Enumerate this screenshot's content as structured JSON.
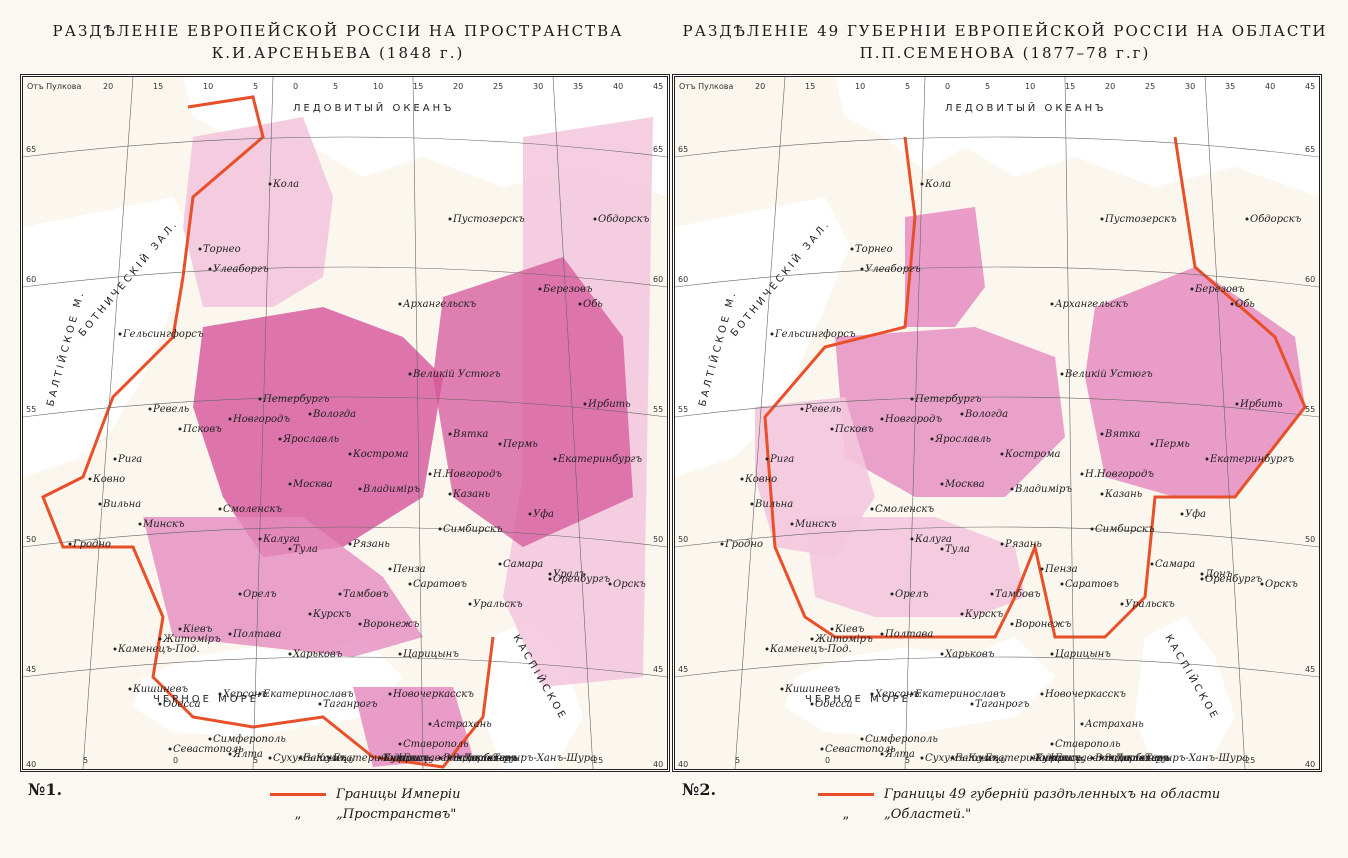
{
  "maps": [
    {
      "title_line1": "РАЗДѢЛЕНІЕ ЕВРОПЕЙСКОЙ РОССІИ НА ПРОСТРАНСТВА",
      "title_line2": "К.И.АРСЕНЬЕВА (1848 г.)",
      "number": "№1.",
      "prime_meridian": "Отъ Пулкова",
      "sea_labels": {
        "arctic": "ЛЕДОВИТЫЙ ОКЕАНЪ",
        "black": "ЧЕРНОЕ МОРЕ",
        "caspian": "КАСПІЙСКОЕ",
        "baltic": "БАЛТІЙСКОЕ М.",
        "bothnia": "БОТНИЧЕСКІЙ ЗАЛ."
      },
      "lon_ticks": [
        "20",
        "15",
        "10",
        "5",
        "0",
        "5",
        "10",
        "15",
        "20",
        "25",
        "30",
        "35",
        "40",
        "45"
      ],
      "lon_ticks_bottom": [
        "5",
        "0",
        "5",
        "10",
        "15",
        "20",
        "25"
      ],
      "lat_ticks": [
        "65",
        "60",
        "55",
        "50",
        "45",
        "40"
      ],
      "cities": [
        "Кола",
        "Торнео",
        "Улеаборгъ",
        "Архангельскъ",
        "Пустозерскъ",
        "Обдорскъ",
        "Березовъ",
        "Обь",
        "Гельсингфорсъ",
        "Петербургъ",
        "Ревель",
        "Рига",
        "Псковъ",
        "Новгородъ",
        "Вологда",
        "Великій Устюгъ",
        "Ярославль",
        "Кострома",
        "Вятка",
        "Пермь",
        "Екатеринбургъ",
        "Ирбить",
        "Москва",
        "Владиміръ",
        "Н.Новгородъ",
        "Казань",
        "Уфа",
        "Смоленскъ",
        "Калуга",
        "Тула",
        "Рязань",
        "Симбирскъ",
        "Самара",
        "Оренбургъ",
        "Орскъ",
        "Уральскъ",
        "Саратовъ",
        "Пенза",
        "Тамбовъ",
        "Орелъ",
        "Курскъ",
        "Воронежъ",
        "Харьковъ",
        "Полтава",
        "Кіевъ",
        "Житоміръ",
        "Каменецъ-Под.",
        "Вильна",
        "Гродно",
        "Минскъ",
        "Ковно",
        "Екатеринославъ",
        "Херсонъ",
        "Одесса",
        "Кишиневъ",
        "Симферополь",
        "Севастополь",
        "Ялта",
        "Таганрогъ",
        "Новочеркасскъ",
        "Царицынъ",
        "Астрахань",
        "Ставрополь",
        "Екатеринодаръ",
        "Владикавказъ",
        "Тифлисъ",
        "Сухумъ-Кале",
        "Батумъ",
        "Кутаисъ",
        "Дербентъ",
        "Темиръ-Ханъ-Шура",
        "Закаталы",
        "Елисаветполь",
        "Уралъ"
      ],
      "legend": [
        {
          "label": "Границы Имперіи",
          "color": "#e8502a",
          "style": "solid"
        },
        {
          "label": "„Пространствъ\"",
          "color": "#e0a12a",
          "style": "dashed",
          "ditto": "„"
        }
      ]
    },
    {
      "title_line1": "РАЗДѢЛЕНІЕ 49 ГУБЕРНІИ ЕВРОПЕЙСКОЙ РОССІИ НА ОБЛАСТИ",
      "title_line2": "П.П.СЕМЕНОВА (1877–78 г.г)",
      "number": "№2.",
      "prime_meridian": "Отъ Пулкова",
      "sea_labels": {
        "arctic": "ЛЕДОВИТЫЙ ОКЕАНЪ",
        "black": "ЧЕРНОЕ МОРЕ",
        "caspian": "КАСПІЙСКОЕ",
        "baltic": "БАЛТІЙСКОЕ М.",
        "bothnia": "БОТНИЧЕСКІЙ ЗАЛ."
      },
      "lon_ticks": [
        "20",
        "15",
        "10",
        "5",
        "0",
        "5",
        "10",
        "15",
        "20",
        "25",
        "30",
        "35",
        "40",
        "45"
      ],
      "lon_ticks_bottom": [
        "5",
        "0",
        "5",
        "10",
        "15",
        "20",
        "25"
      ],
      "lat_ticks": [
        "65",
        "60",
        "55",
        "50",
        "45",
        "40"
      ],
      "cities": [
        "Кола",
        "Торнео",
        "Улеаборгъ",
        "Архангельскъ",
        "Пустозерскъ",
        "Обдорскъ",
        "Березовъ",
        "Обь",
        "Гельсингфорсъ",
        "Петербургъ",
        "Ревель",
        "Рига",
        "Псковъ",
        "Новгородъ",
        "Вологда",
        "Великій Устюгъ",
        "Ярославль",
        "Кострома",
        "Вятка",
        "Пермь",
        "Екатеринбургъ",
        "Ирбить",
        "Москва",
        "Владиміръ",
        "Н.Новгородъ",
        "Казань",
        "Уфа",
        "Смоленскъ",
        "Калуга",
        "Тула",
        "Рязань",
        "Симбирскъ",
        "Самара",
        "Оренбургъ",
        "Орскъ",
        "Уральскъ",
        "Саратовъ",
        "Пенза",
        "Тамбовъ",
        "Орелъ",
        "Курскъ",
        "Воронежъ",
        "Харьковъ",
        "Полтава",
        "Кіевъ",
        "Житоміръ",
        "Каменецъ-Под.",
        "Вильна",
        "Гродно",
        "Минскъ",
        "Ковно",
        "Екатеринославъ",
        "Херсонъ",
        "Одесса",
        "Кишиневъ",
        "Симферополь",
        "Севастополь",
        "Ялта",
        "Таганрогъ",
        "Новочеркасскъ",
        "Царицынъ",
        "Астрахань",
        "Ставрополь",
        "Екатеринодаръ",
        "Владикавказъ",
        "Тифлисъ",
        "Сухумъ-Кале",
        "Батумъ",
        "Кутаисъ",
        "Дербентъ",
        "Темиръ-Ханъ-Шура",
        "Закаталы",
        "Елисаветполь",
        "Донъ"
      ],
      "legend": [
        {
          "label": "Границы 49 губерній раздѣленныхъ на области",
          "color": "#e8502a",
          "style": "solid"
        },
        {
          "label": "„Областей.\"",
          "color": "#c9a7a0",
          "style": "dashed",
          "ditto": "„"
        }
      ]
    }
  ],
  "colors": {
    "region_dark": "#d6559b",
    "region_mid": "#e58cbf",
    "region_light": "#f3c6dd",
    "empire_border": "#e8502a",
    "sea_fill": "#ffffff",
    "land_fill": "#fbf6ee"
  }
}
